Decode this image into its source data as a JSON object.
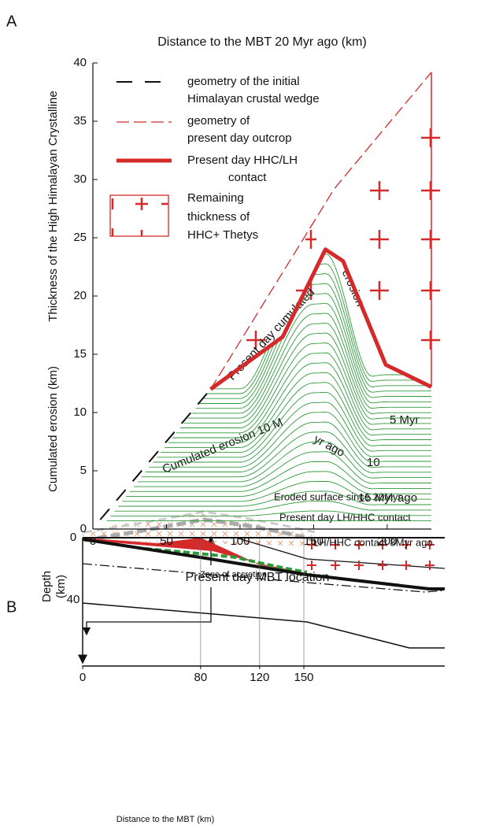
{
  "panel_labels": [
    "A",
    "B"
  ],
  "chart_data": [
    {
      "type": "line",
      "title": "Distance to the MBT 20 Myr ago (km)",
      "y_label": [
        "Cumulated erosion (km)",
        "Thickness of the High Himalayan Crystalline"
      ],
      "xlim": [
        0,
        230
      ],
      "xticks": [
        0,
        50,
        100,
        150,
        200
      ],
      "ylim": [
        0,
        40
      ],
      "yticks": [
        0,
        5,
        10,
        15,
        20,
        25,
        30,
        35,
        40
      ],
      "series": [
        {
          "x": [
            5,
            80
          ],
          "values": [
            0.8,
            12
          ],
          "color": "#111111",
          "dash": "18 14",
          "width": 2
        },
        {
          "x": [
            80,
            164,
            230
          ],
          "values": [
            12,
            29.2,
            39.2
          ],
          "color": "#d42a2a",
          "dash": "14 6",
          "width": 1.3
        },
        {
          "x": [
            80,
            129,
            158,
            170,
            199,
            230
          ],
          "values": [
            12,
            16.5,
            24,
            23,
            14.1,
            12.2
          ],
          "color": "#d42a2a",
          "width": 5
        }
      ],
      "legend": [
        [
          "geometry of the initial",
          "Himalayan crustal wedge"
        ],
        [
          "geometry of",
          "present day outcrop"
        ],
        [
          "Present day HHC/LH",
          "contact"
        ],
        [
          "Remaining",
          "thickness of",
          "HHC+ Thetys"
        ]
      ],
      "annotations": [
        "Present day cumulated",
        "erosion",
        "Cumulated erosion 10 M",
        "yr ago",
        "10",
        "5 Myr",
        "15 Myr ago",
        "Present day MBT location"
      ]
    },
    {
      "type": "section",
      "x_label": "Distance to the MBT (km)",
      "y_label": [
        "Depth",
        "(km)"
      ],
      "xlim": [
        0,
        245
      ],
      "xticks": [
        0,
        80,
        120,
        150
      ],
      "ylim": [
        0,
        82
      ],
      "yticks": [
        0,
        40
      ],
      "annotations": [
        "Eroded surface since 20Myr",
        "Present day LH/HHC contact",
        "LH/HHC contact 8Myr ago",
        "Zone of accretion"
      ]
    }
  ]
}
